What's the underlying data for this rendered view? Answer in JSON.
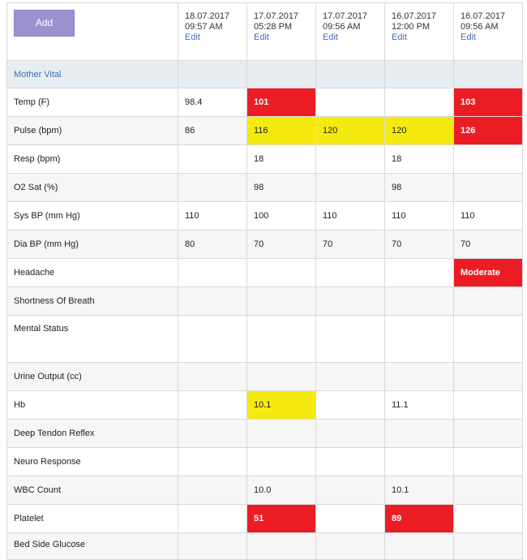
{
  "toolbar": {
    "add_label": "Add"
  },
  "columns": [
    {
      "date": "18.07.2017",
      "time": "09:57 AM",
      "edit": "Edit"
    },
    {
      "date": "17.07.2017",
      "time": "05:28 PM",
      "edit": "Edit"
    },
    {
      "date": "17.07.2017",
      "time": "09:56 AM",
      "edit": "Edit"
    },
    {
      "date": "16.07.2017",
      "time": "12:00 PM",
      "edit": "Edit"
    },
    {
      "date": "16.07.2017",
      "time": "09:56 AM",
      "edit": "Edit"
    }
  ],
  "section": {
    "label": "Mother Vital"
  },
  "colors": {
    "alert": "#ec1c24",
    "warning": "#f5ea10",
    "link": "#3b72b8",
    "button": "#9b91cf"
  },
  "rows": [
    {
      "label": "Temp (F)",
      "cells": [
        {
          "v": "98.4",
          "s": ""
        },
        {
          "v": "101",
          "s": "red"
        },
        {
          "v": "",
          "s": ""
        },
        {
          "v": "",
          "s": ""
        },
        {
          "v": "103",
          "s": "red"
        }
      ]
    },
    {
      "label": "Pulse (bpm)",
      "cells": [
        {
          "v": "86",
          "s": ""
        },
        {
          "v": "116",
          "s": "yellow"
        },
        {
          "v": "120",
          "s": "yellow"
        },
        {
          "v": "120",
          "s": "yellow"
        },
        {
          "v": "126",
          "s": "red"
        }
      ]
    },
    {
      "label": "Resp (bpm)",
      "cells": [
        {
          "v": "",
          "s": ""
        },
        {
          "v": "18",
          "s": ""
        },
        {
          "v": "",
          "s": ""
        },
        {
          "v": "18",
          "s": ""
        },
        {
          "v": "",
          "s": ""
        }
      ]
    },
    {
      "label": "O2 Sat (%)",
      "cells": [
        {
          "v": "",
          "s": ""
        },
        {
          "v": "98",
          "s": ""
        },
        {
          "v": "",
          "s": ""
        },
        {
          "v": "98",
          "s": ""
        },
        {
          "v": "",
          "s": ""
        }
      ]
    },
    {
      "label": "Sys BP (mm Hg)",
      "cells": [
        {
          "v": "110",
          "s": ""
        },
        {
          "v": "100",
          "s": ""
        },
        {
          "v": "110",
          "s": ""
        },
        {
          "v": "110",
          "s": ""
        },
        {
          "v": "110",
          "s": ""
        }
      ]
    },
    {
      "label": "Dia BP (mm Hg)",
      "cells": [
        {
          "v": "80",
          "s": ""
        },
        {
          "v": "70",
          "s": ""
        },
        {
          "v": "70",
          "s": ""
        },
        {
          "v": "70",
          "s": ""
        },
        {
          "v": "70",
          "s": ""
        }
      ]
    },
    {
      "label": "Headache",
      "cells": [
        {
          "v": "",
          "s": ""
        },
        {
          "v": "",
          "s": ""
        },
        {
          "v": "",
          "s": ""
        },
        {
          "v": "",
          "s": ""
        },
        {
          "v": "Moderate",
          "s": "red"
        }
      ]
    },
    {
      "label": "Shortness Of Breath",
      "cells": [
        {
          "v": "",
          "s": ""
        },
        {
          "v": "",
          "s": ""
        },
        {
          "v": "",
          "s": ""
        },
        {
          "v": "",
          "s": ""
        },
        {
          "v": "",
          "s": ""
        }
      ]
    },
    {
      "label": "Mental Status",
      "tall": true,
      "cells": [
        {
          "v": "",
          "s": ""
        },
        {
          "v": "",
          "s": ""
        },
        {
          "v": "",
          "s": ""
        },
        {
          "v": "",
          "s": ""
        },
        {
          "v": "",
          "s": ""
        }
      ]
    },
    {
      "label": "Urine Output (cc)",
      "cells": [
        {
          "v": "",
          "s": ""
        },
        {
          "v": "",
          "s": ""
        },
        {
          "v": "",
          "s": ""
        },
        {
          "v": "",
          "s": ""
        },
        {
          "v": "",
          "s": ""
        }
      ]
    },
    {
      "label": "Hb",
      "cells": [
        {
          "v": "",
          "s": ""
        },
        {
          "v": "10.1",
          "s": "yellow"
        },
        {
          "v": "",
          "s": ""
        },
        {
          "v": "11.1",
          "s": ""
        },
        {
          "v": "",
          "s": ""
        }
      ]
    },
    {
      "label": "Deep Tendon Reflex",
      "cells": [
        {
          "v": "",
          "s": ""
        },
        {
          "v": "",
          "s": ""
        },
        {
          "v": "",
          "s": ""
        },
        {
          "v": "",
          "s": ""
        },
        {
          "v": "",
          "s": ""
        }
      ]
    },
    {
      "label": "Neuro Response",
      "cells": [
        {
          "v": "",
          "s": ""
        },
        {
          "v": "",
          "s": ""
        },
        {
          "v": "",
          "s": ""
        },
        {
          "v": "",
          "s": ""
        },
        {
          "v": "",
          "s": ""
        }
      ]
    },
    {
      "label": "WBC Count",
      "cells": [
        {
          "v": "",
          "s": ""
        },
        {
          "v": "10.0",
          "s": ""
        },
        {
          "v": "",
          "s": ""
        },
        {
          "v": "10.1",
          "s": ""
        },
        {
          "v": "",
          "s": ""
        }
      ]
    },
    {
      "label": "Platelet",
      "cells": [
        {
          "v": "",
          "s": ""
        },
        {
          "v": "51",
          "s": "red"
        },
        {
          "v": "",
          "s": ""
        },
        {
          "v": "89",
          "s": "red"
        },
        {
          "v": "",
          "s": ""
        }
      ]
    },
    {
      "label": "Bed Side Glucose",
      "last": true,
      "cells": [
        {
          "v": "",
          "s": ""
        },
        {
          "v": "",
          "s": ""
        },
        {
          "v": "",
          "s": ""
        },
        {
          "v": "",
          "s": ""
        },
        {
          "v": "",
          "s": ""
        }
      ]
    }
  ]
}
